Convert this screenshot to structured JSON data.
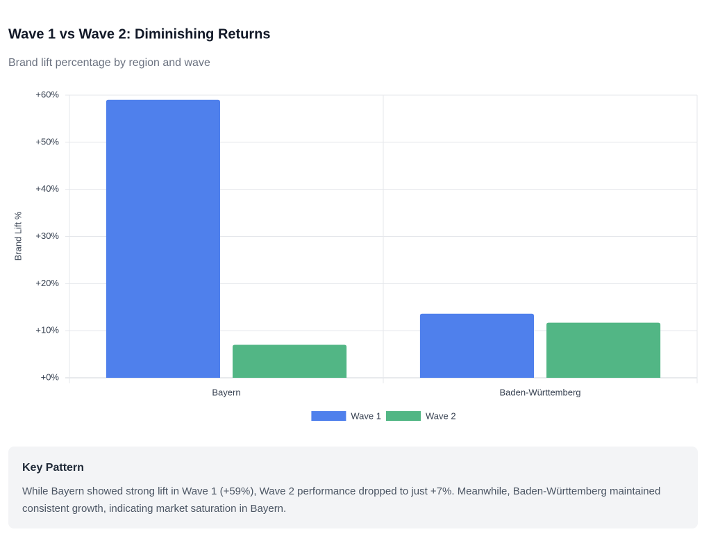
{
  "chart_data": {
    "type": "bar",
    "title": "Wave 1 vs Wave 2: Diminishing Returns",
    "subtitle": "Brand lift percentage by region and wave",
    "y_label": "Brand Lift %",
    "categories": [
      "Bayern",
      "Baden-Württemberg"
    ],
    "series": [
      {
        "name": "Wave 1",
        "color": "#4f80ec",
        "values": [
          59,
          13.6
        ]
      },
      {
        "name": "Wave 2",
        "color": "#52b685",
        "values": [
          7,
          11.7
        ]
      }
    ],
    "ylim": [
      0,
      60
    ],
    "yticks": [
      {
        "value": 0,
        "label": "+0%"
      },
      {
        "value": 10,
        "label": "+10%"
      },
      {
        "value": 20,
        "label": "+20%"
      },
      {
        "value": 30,
        "label": "+30%"
      },
      {
        "value": 40,
        "label": "+40%"
      },
      {
        "value": 50,
        "label": "+50%"
      },
      {
        "value": 60,
        "label": "+60%"
      }
    ],
    "grid": true,
    "legend": "bottom"
  },
  "note": {
    "title": "Key Pattern",
    "text": "While Bayern showed strong lift in Wave 1 (+59%), Wave 2 performance dropped to just +7%. Meanwhile, Baden-Württemberg maintained consistent growth, indicating market saturation in Bayern."
  }
}
